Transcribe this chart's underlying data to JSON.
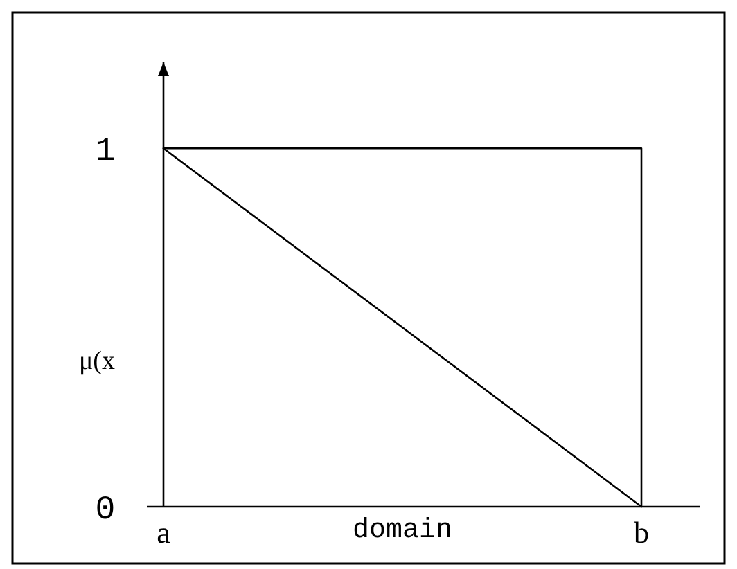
{
  "chart_data": {
    "type": "line",
    "xlabel": "domain",
    "ylabel": "μ(x",
    "categories": [
      "a",
      "b"
    ],
    "ylim": [
      0,
      1.24
    ],
    "yticks": [
      0,
      1
    ],
    "line_style": "solid",
    "series": [
      {
        "color": "#000000",
        "values": [
          1,
          0
        ]
      },
      {
        "color": "#000000",
        "x": [
          "a",
          "b",
          "b"
        ],
        "values": [
          1,
          1,
          0
        ]
      }
    ]
  }
}
